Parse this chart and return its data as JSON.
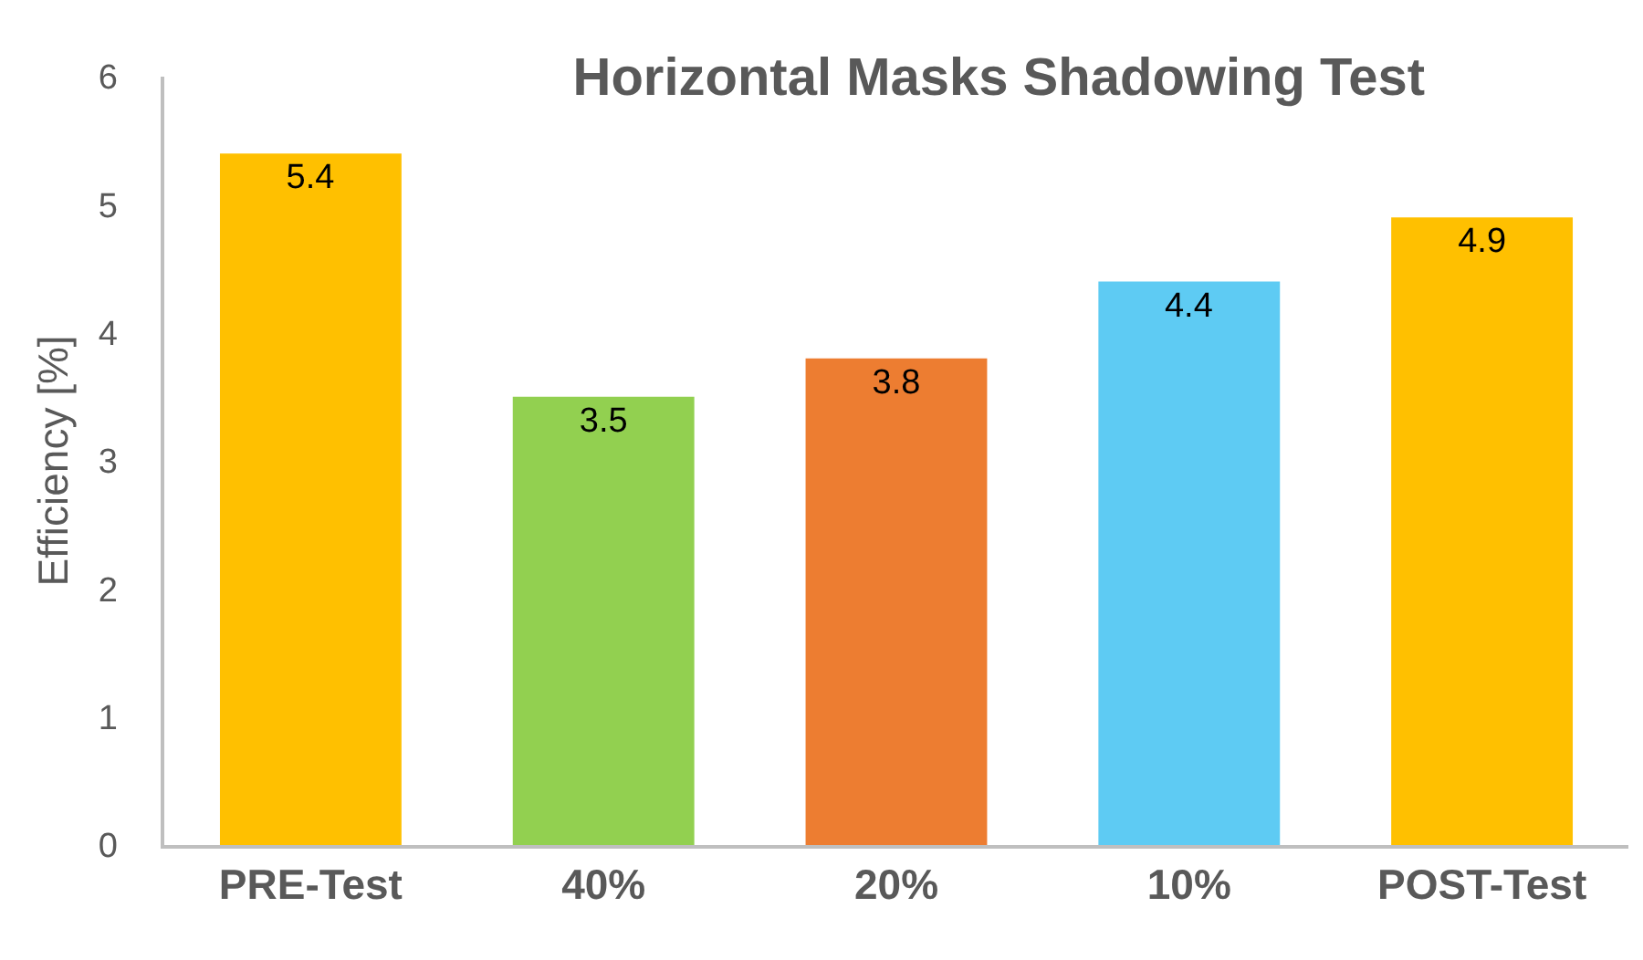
{
  "chart_data": {
    "type": "bar",
    "title": "Horizontal Masks Shadowing Test",
    "ylabel": "Efficiency [%]",
    "categories": [
      "PRE-Test",
      "40%",
      "20%",
      "10%",
      "POST-Test"
    ],
    "values": [
      5.4,
      3.5,
      3.8,
      4.4,
      4.9
    ],
    "colors": [
      "#ffc000",
      "#92d050",
      "#ed7d31",
      "#5ecbf3",
      "#ffc000"
    ],
    "ylim": [
      0,
      6
    ],
    "yticks": [
      0,
      1,
      2,
      3,
      4,
      5,
      6
    ],
    "grid": false,
    "data_labels": true
  }
}
